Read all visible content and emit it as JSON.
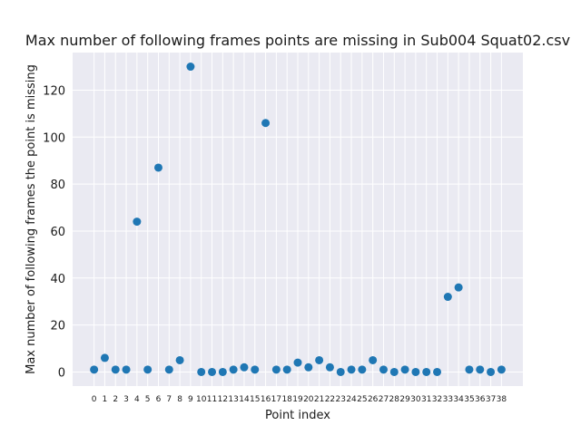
{
  "chart_data": {
    "type": "scatter",
    "title": "Max number of following frames points are missing in Sub004 Squat02.csv",
    "xlabel": "Point index",
    "ylabel": "Max number of following frames the point is missing",
    "x": [
      0,
      1,
      2,
      3,
      4,
      5,
      6,
      7,
      8,
      9,
      10,
      11,
      12,
      13,
      14,
      15,
      16,
      17,
      18,
      19,
      20,
      21,
      22,
      23,
      24,
      25,
      26,
      27,
      28,
      29,
      30,
      31,
      32,
      33,
      34,
      35,
      36,
      37,
      38
    ],
    "y": [
      1,
      6,
      1,
      1,
      64,
      1,
      87,
      1,
      5,
      130,
      0,
      0,
      0,
      1,
      2,
      1,
      106,
      1,
      1,
      4,
      2,
      5,
      2,
      0,
      1,
      1,
      5,
      1,
      0,
      1,
      0,
      0,
      0,
      32,
      36,
      1,
      1,
      0,
      1
    ],
    "xlim": [
      -2,
      40
    ],
    "ylim": [
      -6,
      136
    ],
    "yticks": [
      0,
      20,
      40,
      60,
      80,
      100,
      120
    ],
    "xticks": [
      0,
      1,
      2,
      3,
      4,
      5,
      6,
      7,
      8,
      9,
      10,
      11,
      12,
      13,
      14,
      15,
      16,
      17,
      18,
      19,
      20,
      21,
      22,
      23,
      24,
      25,
      26,
      27,
      28,
      29,
      30,
      31,
      32,
      33,
      34,
      35,
      36,
      37,
      38
    ],
    "grid": true,
    "colors": {
      "background": "#eaeaf2",
      "grid": "#ffffff",
      "marker": "#1f77b4"
    }
  }
}
